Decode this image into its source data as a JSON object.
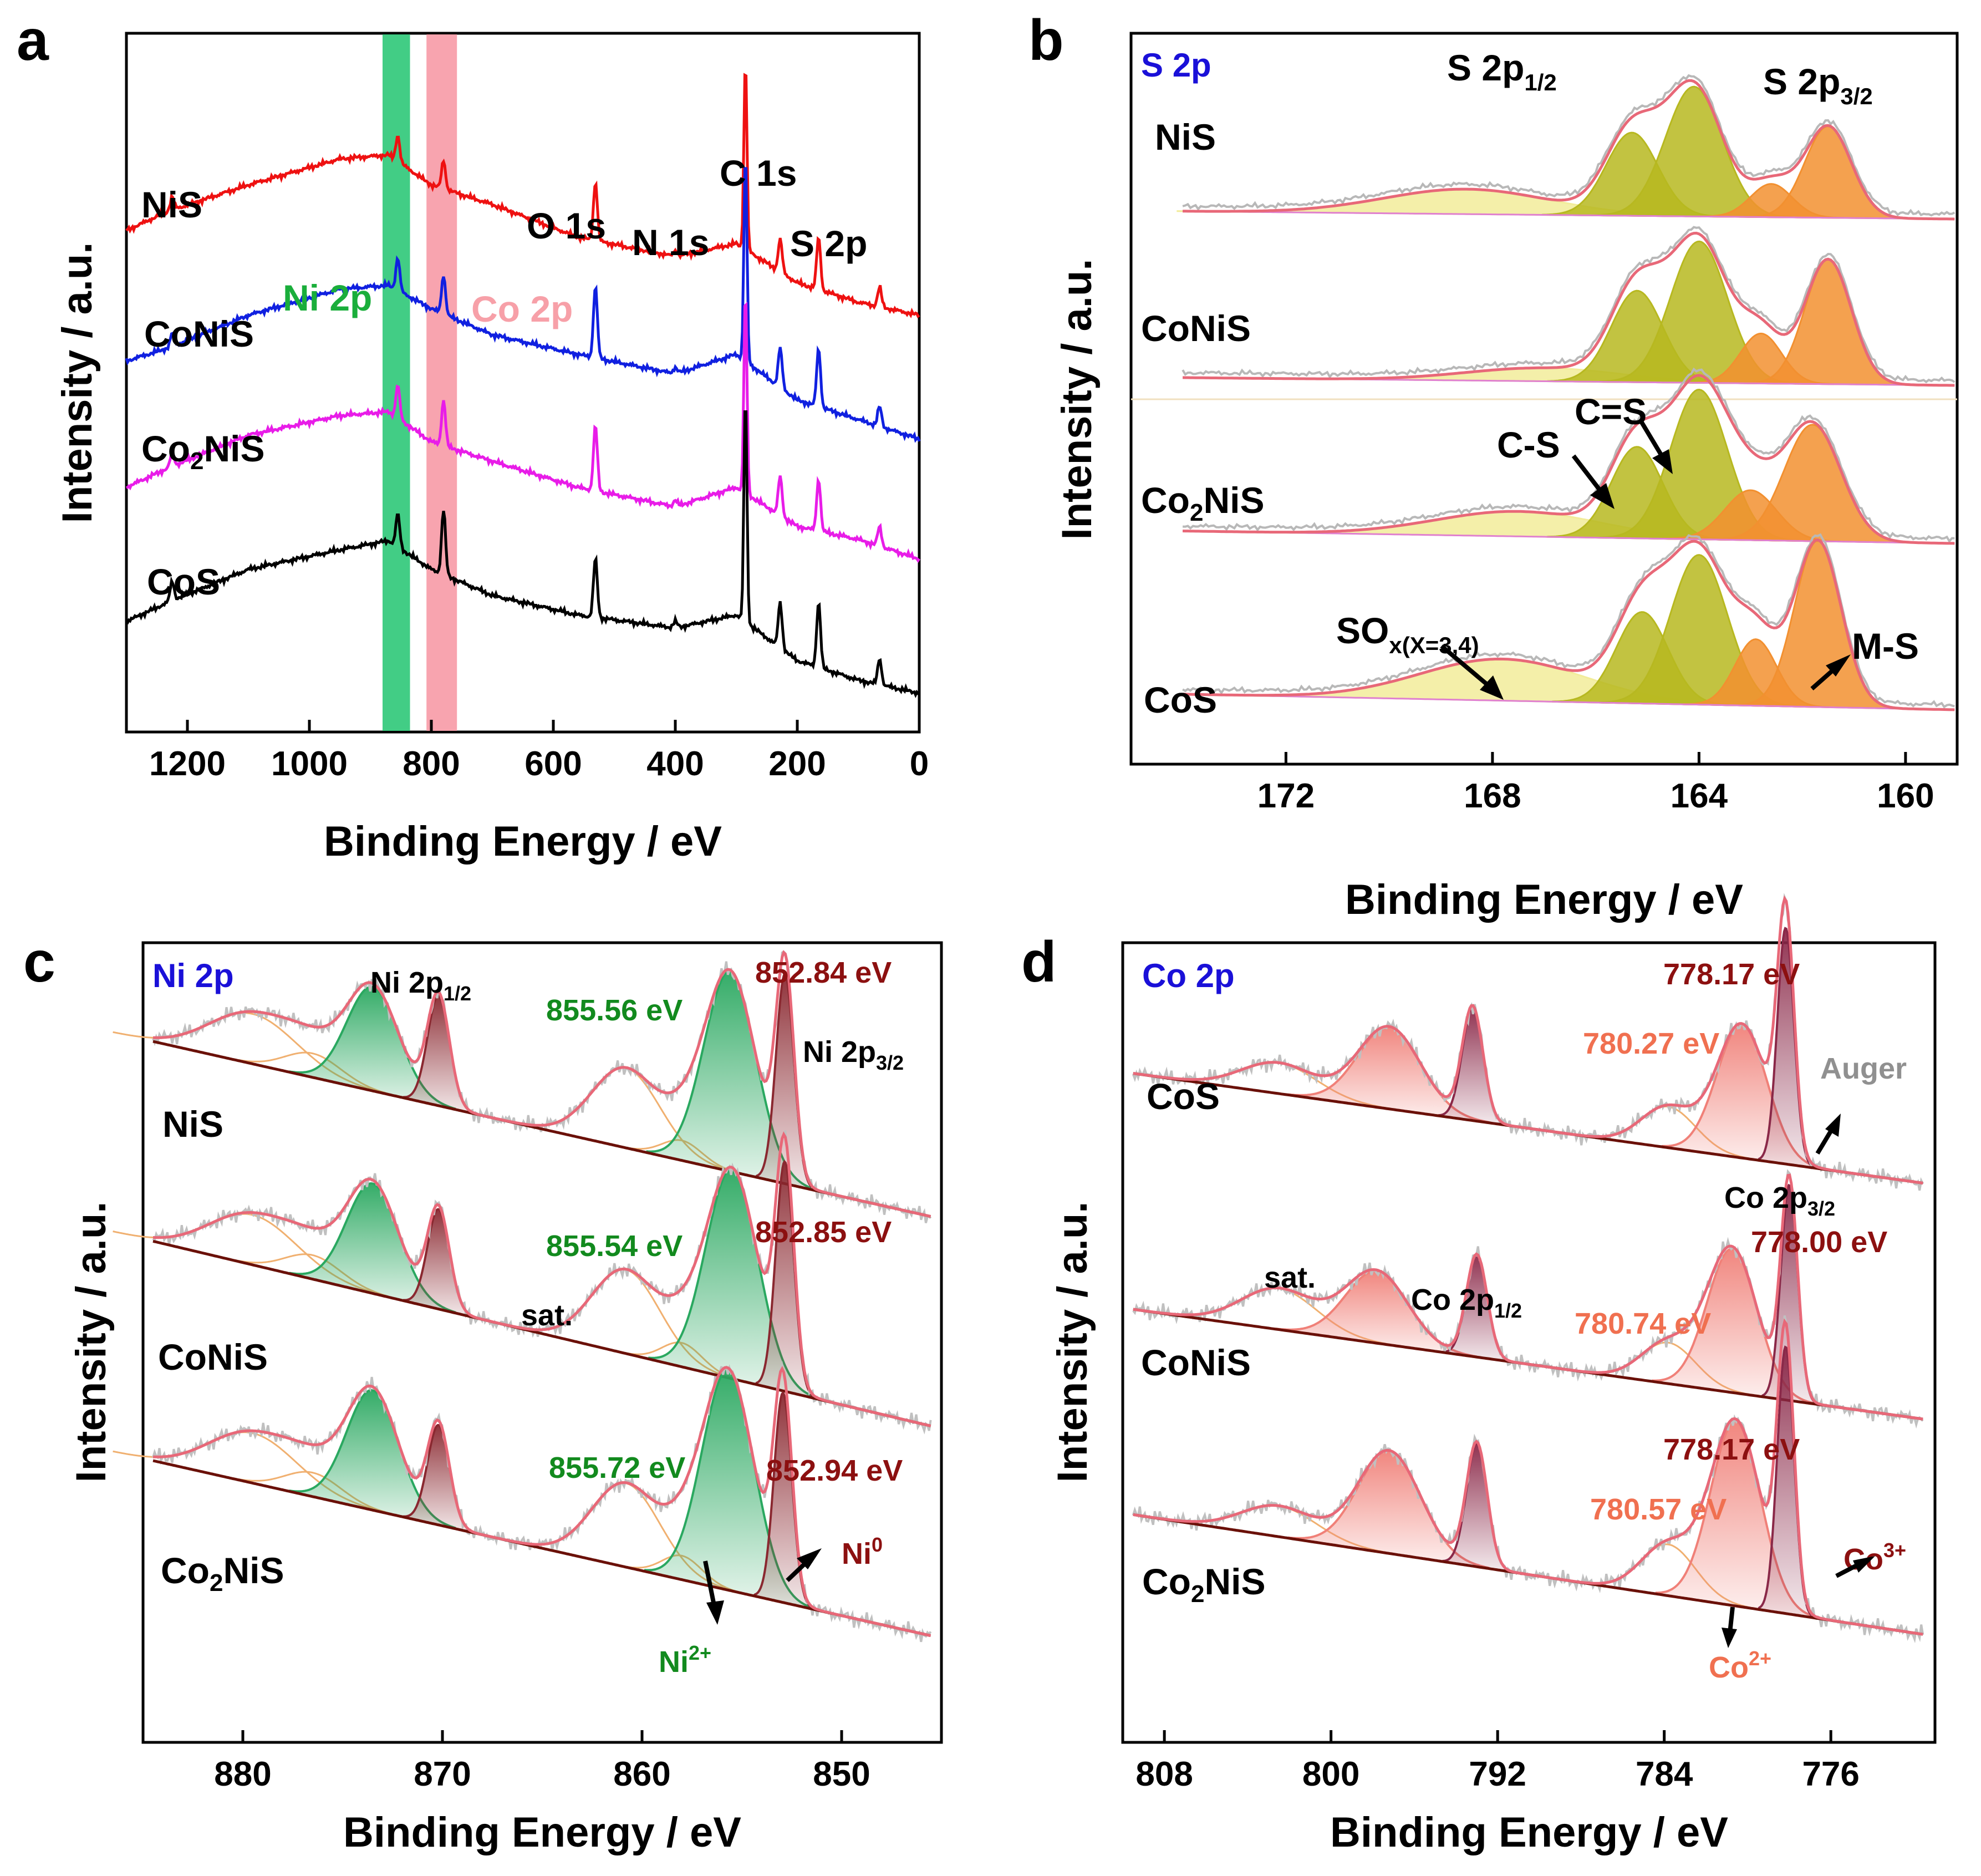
{
  "colors": {
    "ni_label": "#1aae3b",
    "co_label": "#f7a0a8",
    "corner_label": "#1a10d8",
    "dark_red": "#8c1010",
    "green": "#128a1e",
    "orange": "#f07050",
    "gray": "#909090",
    "envelope": "#e86878",
    "background_line": "#6a1008"
  },
  "chart_data": [
    {
      "panel": "a",
      "type": "line",
      "title": "",
      "xlabel": "Binding Energy / eV",
      "ylabel": "Intensity / a.u.",
      "xlim": [
        1300,
        0
      ],
      "xticks": [
        "1200",
        "1000",
        "800",
        "600",
        "400",
        "200",
        "0"
      ],
      "series": [
        {
          "name": "NiS",
          "color": "#ee1111",
          "baseline": 3.55,
          "shape": [
            [
              1300,
              0.0
            ],
            [
              1230,
              0.15
            ],
            [
              1100,
              0.35
            ],
            [
              950,
              0.55
            ],
            [
              870,
              0.58
            ],
            [
              800,
              0.35
            ],
            [
              700,
              0.2
            ],
            [
              560,
              -0.05
            ],
            [
              400,
              -0.2
            ],
            [
              300,
              -0.1
            ],
            [
              200,
              -0.4
            ],
            [
              100,
              -0.55
            ],
            [
              0,
              -0.65
            ]
          ],
          "peaks": [
            [
              1225,
              0.1
            ],
            [
              855,
              0.2
            ],
            [
              780,
              0.22
            ],
            [
              531,
              0.45
            ],
            [
              400,
              0.05
            ],
            [
              285,
              1.45
            ],
            [
              228,
              0.25
            ],
            [
              165,
              0.4
            ],
            [
              65,
              0.15
            ]
          ]
        },
        {
          "name": "CoNiS",
          "color": "#1020e0",
          "baseline": 2.55,
          "shape": [
            [
              1300,
              0.0
            ],
            [
              1230,
              0.1
            ],
            [
              1100,
              0.35
            ],
            [
              950,
              0.55
            ],
            [
              870,
              0.58
            ],
            [
              800,
              0.4
            ],
            [
              700,
              0.2
            ],
            [
              560,
              0.05
            ],
            [
              400,
              -0.1
            ],
            [
              300,
              0.05
            ],
            [
              200,
              -0.3
            ],
            [
              100,
              -0.45
            ],
            [
              0,
              -0.6
            ]
          ],
          "peaks": [
            [
              1225,
              0.1
            ],
            [
              855,
              0.25
            ],
            [
              780,
              0.3
            ],
            [
              531,
              0.55
            ],
            [
              400,
              0.05
            ],
            [
              285,
              1.6
            ],
            [
              228,
              0.3
            ],
            [
              165,
              0.45
            ],
            [
              65,
              0.15
            ]
          ]
        },
        {
          "name": "Co2NiS",
          "color": "#e81ce8",
          "baseline": 1.58,
          "shape": [
            [
              1300,
              0.0
            ],
            [
              1230,
              0.15
            ],
            [
              1100,
              0.4
            ],
            [
              950,
              0.55
            ],
            [
              870,
              0.58
            ],
            [
              800,
              0.35
            ],
            [
              700,
              0.2
            ],
            [
              560,
              0.0
            ],
            [
              400,
              -0.15
            ],
            [
              300,
              0.0
            ],
            [
              200,
              -0.3
            ],
            [
              100,
              -0.4
            ],
            [
              0,
              -0.55
            ]
          ],
          "peaks": [
            [
              1225,
              0.1
            ],
            [
              855,
              0.25
            ],
            [
              780,
              0.35
            ],
            [
              531,
              0.5
            ],
            [
              400,
              0.05
            ],
            [
              285,
              1.55
            ],
            [
              228,
              0.3
            ],
            [
              165,
              0.4
            ],
            [
              65,
              0.15
            ]
          ]
        },
        {
          "name": "CoS",
          "color": "#000000",
          "baseline": 0.55,
          "shape": [
            [
              1300,
              0.0
            ],
            [
              1230,
              0.15
            ],
            [
              1100,
              0.4
            ],
            [
              950,
              0.55
            ],
            [
              870,
              0.62
            ],
            [
              800,
              0.4
            ],
            [
              700,
              0.2
            ],
            [
              560,
              0.05
            ],
            [
              400,
              -0.05
            ],
            [
              300,
              0.05
            ],
            [
              200,
              -0.3
            ],
            [
              100,
              -0.45
            ],
            [
              0,
              -0.55
            ]
          ],
          "peaks": [
            [
              1225,
              0.15
            ],
            [
              855,
              0.25
            ],
            [
              780,
              0.5
            ],
            [
              531,
              0.45
            ],
            [
              400,
              0.05
            ],
            [
              285,
              1.75
            ],
            [
              228,
              0.35
            ],
            [
              165,
              0.5
            ],
            [
              65,
              0.2
            ]
          ]
        }
      ],
      "bands": [
        {
          "name": "Ni 2p",
          "from": 880,
          "to": 835,
          "color": "#2ec878"
        },
        {
          "name": "Co 2p",
          "from": 808,
          "to": 758,
          "color": "#f79aa6"
        }
      ],
      "annotations": [
        "O 1s",
        "N 1s",
        "C 1s",
        "S 2p"
      ]
    },
    {
      "panel": "b",
      "type": "line",
      "corner_label": "S 2p",
      "xlabel": "Binding Energy / eV",
      "ylabel": "Intensity / a.u.",
      "xlim": [
        175,
        159
      ],
      "xticks": [
        "172",
        "168",
        "164",
        "160"
      ],
      "separator_after_series": 1,
      "series": [
        {
          "name": "NiS",
          "base": 3.1,
          "bg_drop": 0.05,
          "peaks": [
            {
              "c": 168.5,
              "a": 0.15,
              "w": 1.6,
              "f": "#f2ec9a"
            },
            {
              "c": 165.3,
              "a": 0.5,
              "w": 0.5,
              "f": "#b7b820"
            },
            {
              "c": 164.1,
              "a": 0.78,
              "w": 0.55,
              "f": "#b7b820"
            },
            {
              "c": 162.6,
              "a": 0.2,
              "w": 0.4,
              "f": "#f29030"
            },
            {
              "c": 161.5,
              "a": 0.55,
              "w": 0.45,
              "f": "#f29030"
            }
          ]
        },
        {
          "name": "CoNiS",
          "base": 2.1,
          "bg_drop": 0.05,
          "peaks": [
            {
              "c": 167.0,
              "a": 0.08,
              "w": 1.5,
              "f": "#f2ec9a"
            },
            {
              "c": 165.2,
              "a": 0.55,
              "w": 0.5,
              "f": "#b7b820"
            },
            {
              "c": 164.0,
              "a": 0.85,
              "w": 0.55,
              "f": "#b7b820"
            },
            {
              "c": 162.8,
              "a": 0.3,
              "w": 0.4,
              "f": "#f29030"
            },
            {
              "c": 161.5,
              "a": 0.75,
              "w": 0.45,
              "f": "#f29030"
            }
          ]
        },
        {
          "name": "Co2NiS",
          "base": 1.15,
          "bg_drop": 0.08,
          "peaks": [
            {
              "c": 167.5,
              "a": 0.15,
              "w": 1.6,
              "f": "#f2ec9a"
            },
            {
              "c": 165.2,
              "a": 0.55,
              "w": 0.5,
              "f": "#b7b820"
            },
            {
              "c": 164.0,
              "a": 0.9,
              "w": 0.55,
              "f": "#b7b820"
            },
            {
              "c": 163.0,
              "a": 0.3,
              "w": 0.5,
              "f": "#f29030"
            },
            {
              "c": 161.8,
              "a": 0.7,
              "w": 0.55,
              "f": "#f29030"
            }
          ]
        },
        {
          "name": "CoS",
          "base": 0.15,
          "bg_drop": 0.1,
          "peaks": [
            {
              "c": 167.8,
              "a": 0.25,
              "w": 1.6,
              "f": "#f2ec9a"
            },
            {
              "c": 165.1,
              "a": 0.55,
              "w": 0.5,
              "f": "#b7b820"
            },
            {
              "c": 164.0,
              "a": 0.9,
              "w": 0.55,
              "f": "#b7b820"
            },
            {
              "c": 162.9,
              "a": 0.4,
              "w": 0.4,
              "f": "#f29030"
            },
            {
              "c": 161.7,
              "a": 1.0,
              "w": 0.45,
              "f": "#f29030"
            }
          ]
        }
      ],
      "annotations": [
        "S 2p",
        "1/2",
        "3/2",
        "C-S",
        "C=S",
        "SO",
        "x(X=3,4)",
        "M-S"
      ]
    },
    {
      "panel": "c",
      "type": "line",
      "corner_label": "Ni 2p",
      "xlabel": "Binding Energy / eV",
      "ylabel": "Intensity / a.u.",
      "xlim": [
        885,
        845
      ],
      "xticks": [
        "880",
        "870",
        "860",
        "850"
      ],
      "series": [
        {
          "name": "NiS",
          "base": 2.45,
          "drop": 0.9,
          "peaks": [
            {
              "c": 879.5,
              "a": 0.25,
              "w": 2.2,
              "f": "none"
            },
            {
              "c": 876.5,
              "a": 0.12,
              "w": 1.4,
              "f": "none"
            },
            {
              "c": 873.5,
              "a": 0.52,
              "w": 1.3,
              "f": "#2aa860"
            },
            {
              "c": 870.2,
              "a": 0.55,
              "w": 0.55,
              "f": "#8a2830"
            },
            {
              "c": 860.8,
              "a": 0.4,
              "w": 1.7,
              "f": "none"
            },
            {
              "c": 858.0,
              "a": 0.1,
              "w": 1.0,
              "f": "none"
            },
            {
              "c": 855.6,
              "a": 1.0,
              "w": 1.3,
              "f": "#2aa860"
            },
            {
              "c": 852.84,
              "a": 1.05,
              "w": 0.45,
              "f": "#8a2830"
            }
          ]
        },
        {
          "name": "CoNiS",
          "base": 1.4,
          "drop": 0.95,
          "peaks": [
            {
              "c": 879.5,
              "a": 0.25,
              "w": 2.2,
              "f": "none"
            },
            {
              "c": 876.5,
              "a": 0.12,
              "w": 1.4,
              "f": "none"
            },
            {
              "c": 873.5,
              "a": 0.55,
              "w": 1.3,
              "f": "#2aa860"
            },
            {
              "c": 870.2,
              "a": 0.5,
              "w": 0.55,
              "f": "#8a2830"
            },
            {
              "c": 860.8,
              "a": 0.42,
              "w": 1.7,
              "f": "none"
            },
            {
              "c": 858.0,
              "a": 0.12,
              "w": 1.0,
              "f": "none"
            },
            {
              "c": 855.5,
              "a": 1.05,
              "w": 1.3,
              "f": "#2aa860"
            },
            {
              "c": 852.85,
              "a": 1.15,
              "w": 0.45,
              "f": "#8a2830"
            }
          ]
        },
        {
          "name": "Co2NiS",
          "base": 0.35,
          "drop": 0.9,
          "peaks": [
            {
              "c": 879.5,
              "a": 0.25,
              "w": 2.2,
              "f": "none"
            },
            {
              "c": 876.5,
              "a": 0.12,
              "w": 1.4,
              "f": "none"
            },
            {
              "c": 873.5,
              "a": 0.6,
              "w": 1.3,
              "f": "#2aa860"
            },
            {
              "c": 870.2,
              "a": 0.5,
              "w": 0.55,
              "f": "#8a2830"
            },
            {
              "c": 860.8,
              "a": 0.42,
              "w": 1.7,
              "f": "none"
            },
            {
              "c": 858.0,
              "a": 0.12,
              "w": 1.0,
              "f": "none"
            },
            {
              "c": 855.7,
              "a": 1.1,
              "w": 1.3,
              "f": "#2aa860"
            },
            {
              "c": 852.94,
              "a": 1.05,
              "w": 0.45,
              "f": "#8a2830"
            }
          ]
        }
      ],
      "annotations": [
        "Ni 2p",
        "1/2",
        "3/2",
        "855.56 eV",
        "852.84 eV",
        "855.54 eV",
        "852.85 eV",
        "855.72 eV",
        "852.94 eV",
        "sat.",
        "Ni",
        "0",
        "Ni",
        "2+"
      ]
    },
    {
      "panel": "d",
      "type": "line",
      "corner_label": "Co 2p",
      "xlabel": "Binding Energy / eV",
      "ylabel": "Intensity / a.u.",
      "xlim": [
        810,
        771
      ],
      "xticks": [
        "808",
        "800",
        "792",
        "784",
        "776"
      ],
      "series": [
        {
          "name": "CoS",
          "base": 2.55,
          "drop": 0.55,
          "peaks": [
            {
              "c": 802.5,
              "a": 0.15,
              "w": 1.8,
              "f": "none"
            },
            {
              "c": 797.2,
              "a": 0.4,
              "w": 1.5,
              "f": "#f08078"
            },
            {
              "c": 793.2,
              "a": 0.55,
              "w": 0.5,
              "f": "#8a2848"
            },
            {
              "c": 783.8,
              "a": 0.2,
              "w": 1.3,
              "f": "none"
            },
            {
              "c": 780.27,
              "a": 0.65,
              "w": 1.2,
              "f": "#f08078"
            },
            {
              "c": 778.17,
              "a": 1.15,
              "w": 0.4,
              "f": "#8a2848"
            }
          ]
        },
        {
          "name": "CoNiS",
          "base": 1.4,
          "drop": 0.55,
          "peaks": [
            {
              "c": 802.5,
              "a": 0.2,
              "w": 1.8,
              "f": "none"
            },
            {
              "c": 797.8,
              "a": 0.35,
              "w": 1.5,
              "f": "#f08078"
            },
            {
              "c": 793.0,
              "a": 0.5,
              "w": 0.5,
              "f": "#8a2848"
            },
            {
              "c": 783.8,
              "a": 0.2,
              "w": 1.3,
              "f": "none"
            },
            {
              "c": 780.74,
              "a": 0.7,
              "w": 1.2,
              "f": "#f08078"
            },
            {
              "c": 778.0,
              "a": 1.05,
              "w": 0.4,
              "f": "#8a2848"
            }
          ]
        },
        {
          "name": "Co2NiS",
          "base": 0.35,
          "drop": 0.6,
          "peaks": [
            {
              "c": 802.5,
              "a": 0.15,
              "w": 1.8,
              "f": "none"
            },
            {
              "c": 797.2,
              "a": 0.5,
              "w": 1.5,
              "f": "#f08078"
            },
            {
              "c": 793.0,
              "a": 0.6,
              "w": 0.5,
              "f": "#8a2848"
            },
            {
              "c": 783.8,
              "a": 0.25,
              "w": 1.3,
              "f": "none"
            },
            {
              "c": 780.57,
              "a": 0.9,
              "w": 1.2,
              "f": "#f08078"
            },
            {
              "c": 778.17,
              "a": 1.3,
              "w": 0.4,
              "f": "#8a2848"
            }
          ]
        }
      ],
      "annotations": [
        "Co 2p",
        "1/2",
        "3/2",
        "778.17 eV",
        "780.27 eV",
        "778.00 eV",
        "780.74 eV",
        "778.17 eV",
        "780.57 eV",
        "sat.",
        "Auger",
        "Co",
        "3+",
        "Co",
        "2+"
      ]
    }
  ]
}
